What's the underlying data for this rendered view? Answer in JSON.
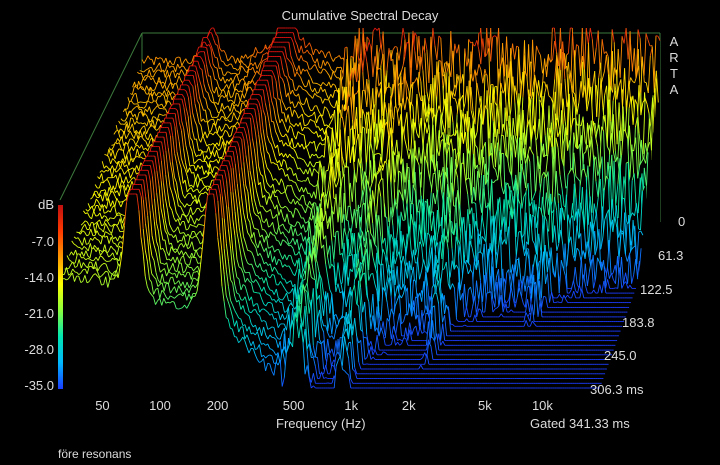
{
  "chart_data": {
    "type": "waterfall",
    "title": "Cumulative Spectral Decay",
    "brand": [
      "A",
      "R",
      "T",
      "A"
    ],
    "xlabel": "Frequency (Hz)",
    "x_ticks": [
      "50",
      "100",
      "200",
      "500",
      "1k",
      "2k",
      "5k",
      "10k"
    ],
    "x_tick_values": [
      50,
      100,
      200,
      500,
      1000,
      2000,
      5000,
      10000
    ],
    "x_scale": "log",
    "xlim": [
      30,
      20000
    ],
    "zlabel": "dB",
    "z_ticks": [
      "-7.0",
      "-14.0",
      "-21.0",
      "-28.0",
      "-35.0"
    ],
    "zlim": [
      -35,
      0
    ],
    "time_ticks": [
      "0",
      "61.3",
      "122.5",
      "183.8",
      "245.0",
      "306.3 ms"
    ],
    "time_values_ms": [
      0,
      61.3,
      122.5,
      183.8,
      245.0,
      306.3
    ],
    "time_unit": "ms",
    "gated_label": "Gated 341.33 ms",
    "slice_count": 36,
    "colormap": [
      "#1a3cff",
      "#00b8ff",
      "#00e6b0",
      "#8cff3c",
      "#ffff00",
      "#ff9a00",
      "#e01010"
    ],
    "colorbar": [
      "#c01010",
      "#ff3a00",
      "#ff9a00",
      "#ffff00",
      "#8cff3c",
      "#00e6b0",
      "#00b8ff",
      "#1a3cff"
    ],
    "frame_color": "#3c7a3c",
    "resonances_hz": [
      72,
      185,
      520,
      900,
      2200,
      6500
    ],
    "first_slice_peak_db": -2.0
  },
  "footnote": "före resonans"
}
